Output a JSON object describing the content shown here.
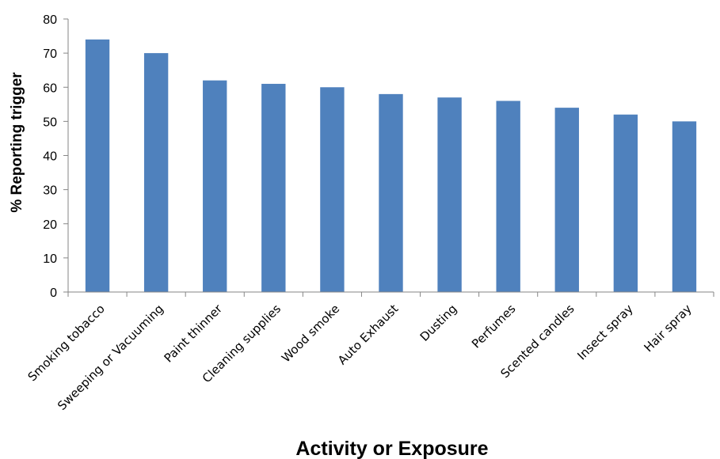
{
  "chart_data": {
    "type": "bar",
    "title": "",
    "xlabel": "Activity or Exposure",
    "ylabel": "% Reporting trigger",
    "ylim": [
      0,
      80
    ],
    "yticks": [
      0,
      10,
      20,
      30,
      40,
      50,
      60,
      70,
      80
    ],
    "categories": [
      "Smoking tobacco",
      "Sweeping or Vacuuming",
      "Paint thinner",
      "Cleaning supplies",
      "Wood smoke",
      "Auto Exhaust",
      "Dusting",
      "Perfumes",
      "Scented candles",
      "Insect spray",
      "Hair spray"
    ],
    "values": [
      74,
      70,
      62,
      61,
      60,
      58,
      57,
      56,
      54,
      52,
      50
    ],
    "grid": false,
    "legend": "none",
    "colors": {
      "bar": "#4f81bd",
      "axis": "#868686"
    }
  }
}
